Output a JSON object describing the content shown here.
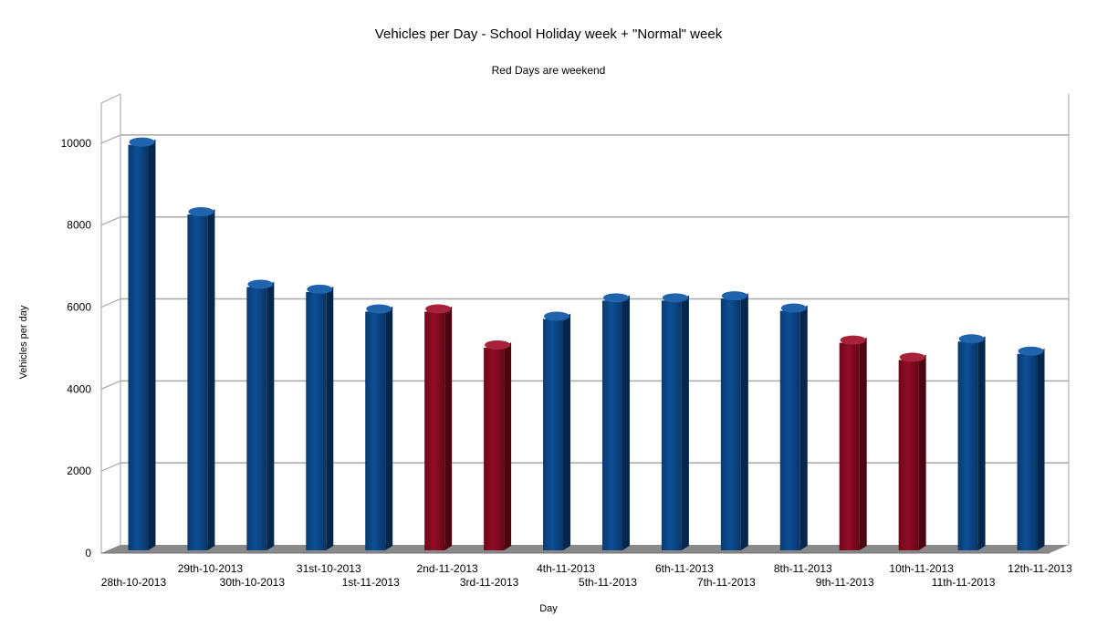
{
  "chart_data": {
    "type": "bar",
    "title": "Vehicles per Day - School Holiday week + \"Normal\" week",
    "subtitle": "Red Days are weekend",
    "xlabel": "Day",
    "ylabel": "Vehicles per day",
    "ylim": [
      0,
      11000
    ],
    "yticks": [
      0,
      2000,
      4000,
      6000,
      8000,
      10000
    ],
    "grid": true,
    "legend": "none",
    "colors": {
      "weekday": "#0b4a8c",
      "weekend": "#8c0a22"
    },
    "categories": [
      "28th-10-2013",
      "29th-10-2013",
      "30th-10-2013",
      "31st-10-2013",
      "1st-11-2013",
      "2nd-11-2013",
      "3rd-11-2013",
      "4th-11-2013",
      "5th-11-2013",
      "6th-11-2013",
      "7th-11-2013",
      "8th-11-2013",
      "9th-11-2013",
      "10th-11-2013",
      "11th-11-2013",
      "12th-11-2013"
    ],
    "values": [
      10050,
      8350,
      6580,
      6460,
      5980,
      5980,
      5100,
      5800,
      6250,
      6250,
      6300,
      6000,
      5220,
      4800,
      5250,
      4950
    ],
    "weekend": [
      false,
      false,
      false,
      false,
      false,
      true,
      true,
      false,
      false,
      false,
      false,
      false,
      true,
      true,
      false,
      false
    ]
  }
}
